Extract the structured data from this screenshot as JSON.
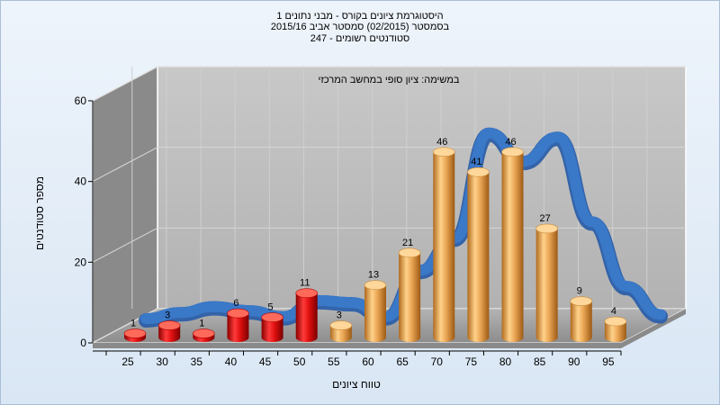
{
  "chart_data": {
    "type": "bar",
    "title_lines": [
      "היסטוגרמת ציונים בקורס - מבני נתונים 1",
      "בסמסטר (02/2015) סמסטר אביב 2015/16",
      "סטודנטים רשומים - 247"
    ],
    "subtitle": "במשימה: ציון סופי במחשב המרכזי",
    "xlabel": "טווח ציונים",
    "ylabel": "מספר סטודנטים",
    "categories": [
      "25",
      "30",
      "35",
      "40",
      "45",
      "50",
      "55",
      "60",
      "65",
      "70",
      "75",
      "80",
      "85",
      "90",
      "95"
    ],
    "values": [
      1,
      3,
      1,
      6,
      5,
      11,
      3,
      13,
      21,
      46,
      41,
      46,
      27,
      9,
      4
    ],
    "ylim": [
      0,
      60
    ],
    "yticks": [
      0,
      20,
      40,
      60
    ],
    "fail_threshold": 55,
    "colors": {
      "fail": "#e01010",
      "pass": "#e8a850",
      "curve": "#3a78c8",
      "back_wall": "#bdbdbd",
      "side_wall": "#8a8a8a"
    },
    "curve_values": [
      2,
      3.5,
      5,
      4,
      2.5,
      6.5,
      6,
      2.5,
      14,
      22,
      48,
      41,
      47,
      26,
      10,
      3
    ]
  }
}
